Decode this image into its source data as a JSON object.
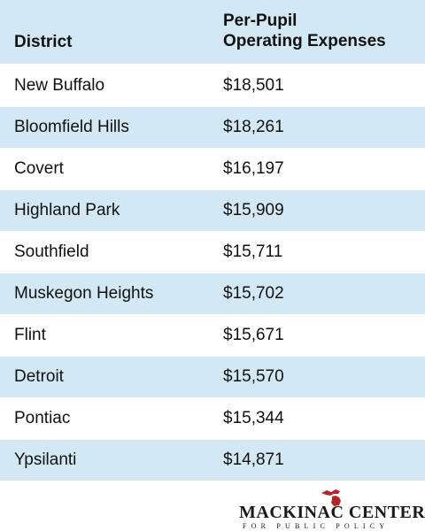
{
  "chart_data": {
    "type": "table",
    "columns": [
      "District",
      "Per-Pupil Operating Expenses"
    ],
    "column_header_lines": [
      "Per-Pupil",
      "Operating Expenses"
    ],
    "rows": [
      {
        "district": "New Buffalo",
        "expense": "$18,501"
      },
      {
        "district": "Bloomfield Hills",
        "expense": "$18,261"
      },
      {
        "district": "Covert",
        "expense": "$16,197"
      },
      {
        "district": "Highland Park",
        "expense": "$15,909"
      },
      {
        "district": "Southfield",
        "expense": "$15,711"
      },
      {
        "district": "Muskegon Heights",
        "expense": "$15,702"
      },
      {
        "district": "Flint",
        "expense": "$15,671"
      },
      {
        "district": "Detroit",
        "expense": "$15,570"
      },
      {
        "district": "Pontiac",
        "expense": "$15,344"
      },
      {
        "district": "Ypsilanti",
        "expense": "$14,871"
      }
    ]
  },
  "logo": {
    "name": "MACKINAC CENTER",
    "tagline": "FOR PUBLIC POLICY",
    "icon": "michigan-icon"
  },
  "colors": {
    "band": "#d3e8f5",
    "text": "#111111",
    "logo_red": "#b5252a"
  }
}
